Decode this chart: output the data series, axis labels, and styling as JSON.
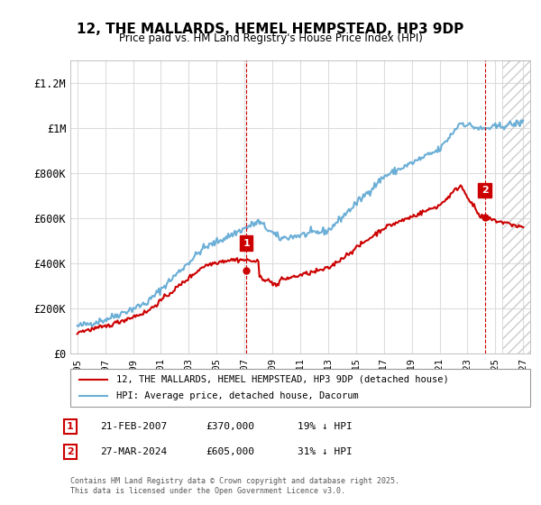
{
  "title": "12, THE MALLARDS, HEMEL HEMPSTEAD, HP3 9DP",
  "subtitle": "Price paid vs. HM Land Registry's House Price Index (HPI)",
  "ylim": [
    0,
    1300000
  ],
  "yticks": [
    0,
    200000,
    400000,
    600000,
    800000,
    1000000,
    1200000
  ],
  "ytick_labels": [
    "£0",
    "£200K",
    "£400K",
    "£600K",
    "£800K",
    "£1M",
    "£1.2M"
  ],
  "hpi_color": "#6baed6",
  "price_color": "#cc0000",
  "marker1_year": 2007.13,
  "marker1_price": 370000,
  "marker2_year": 2024.24,
  "marker2_price": 605000,
  "vline_color": "#cc0000",
  "annotation1_label": "1",
  "annotation2_label": "2",
  "legend_line1": "12, THE MALLARDS, HEMEL HEMPSTEAD, HP3 9DP (detached house)",
  "legend_line2": "HPI: Average price, detached house, Dacorum",
  "footnote1_label": "1",
  "footnote1_date": "21-FEB-2007",
  "footnote1_price": "£370,000",
  "footnote1_hpi": "19% ↓ HPI",
  "footnote2_label": "2",
  "footnote2_date": "27-MAR-2024",
  "footnote2_price": "£605,000",
  "footnote2_hpi": "31% ↓ HPI",
  "copyright": "Contains HM Land Registry data © Crown copyright and database right 2025.\nThis data is licensed under the Open Government Licence v3.0.",
  "background_color": "#ffffff",
  "grid_color": "#dddddd",
  "hatch_color": "#cccccc",
  "footnote_box_color": "#cc0000"
}
